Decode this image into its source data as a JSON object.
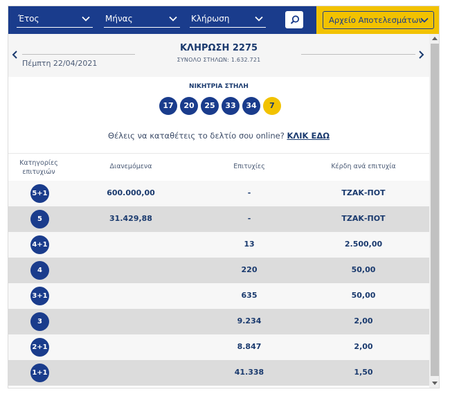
{
  "filters": {
    "year": "Έτος",
    "month": "Μήνας",
    "draw": "Κλήρωση"
  },
  "archive_button": "Αρχείο Αποτελεσμάτων",
  "draw": {
    "date": "Πέμπτη 22/04/2021",
    "title": "ΚΛΗΡΩΣΗ 2275",
    "total_columns": "ΣΥΝΟΛΟ ΣΤΗΛΩΝ: 1.632.721"
  },
  "winning": {
    "title": "ΝΙΚΗΤΡΙΑ ΣΤΗΛΗ",
    "numbers": [
      "17",
      "20",
      "25",
      "33",
      "34"
    ],
    "joker": "7"
  },
  "cta": {
    "text": "Θέλεις να καταθέτεις το δελτίο σου online?",
    "link": "ΚΛΙΚ ΕΔΩ"
  },
  "table": {
    "headers": {
      "categories_line1": "Κατηγορίες",
      "categories_line2": "επιτυχιών",
      "distributed": "Διανεμόμενα",
      "winners": "Επιτυχίες",
      "prize": "Κέρδη ανά επιτυχία"
    },
    "rows": [
      {
        "category": "5+1",
        "distributed": "600.000,00",
        "winners": "-",
        "prize": "ΤΖΑΚ-ΠΟΤ"
      },
      {
        "category": "5",
        "distributed": "31.429,88",
        "winners": "-",
        "prize": "ΤΖΑΚ-ΠΟΤ"
      },
      {
        "category": "4+1",
        "distributed": "",
        "winners": "13",
        "prize": "2.500,00"
      },
      {
        "category": "4",
        "distributed": "",
        "winners": "220",
        "prize": "50,00"
      },
      {
        "category": "3+1",
        "distributed": "",
        "winners": "635",
        "prize": "50,00"
      },
      {
        "category": "3",
        "distributed": "",
        "winners": "9.234",
        "prize": "2,00"
      },
      {
        "category": "2+1",
        "distributed": "",
        "winners": "8.847",
        "prize": "2,00"
      },
      {
        "category": "1+1",
        "distributed": "",
        "winners": "41.338",
        "prize": "1,50"
      }
    ]
  },
  "colors": {
    "brand_blue": "#1a3c8c",
    "joker_yellow": "#f2c200",
    "text_navy": "#1a3a6e"
  },
  "icons": {
    "filter_chevron": "chevron-down-icon",
    "search": "search-icon",
    "prev": "chevron-left-icon",
    "next": "chevron-right-icon"
  }
}
